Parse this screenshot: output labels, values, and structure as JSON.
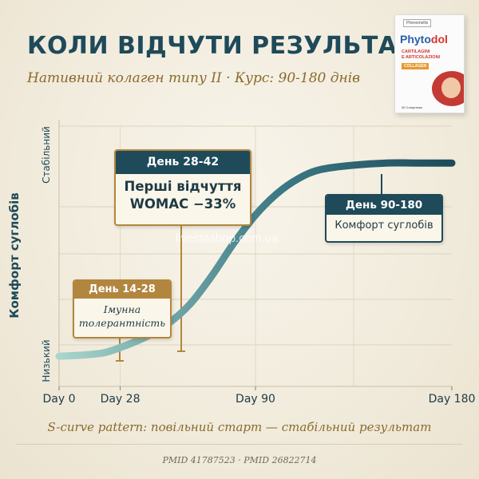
{
  "header": {
    "title": "КОЛИ ВІДЧУТИ РЕЗУЛЬТАТ?",
    "subtitle": "Нативний колаген типу II · Курс: 90-180 днів"
  },
  "product": {
    "brand_prefix": "Phyto",
    "brand_suffix": "dol",
    "maker": "Phenomellis",
    "line1": "CARTILAGINI",
    "line2": "E ARTICOLAZIONI",
    "badge": "COLLAGEN",
    "caps": "30 Compresse"
  },
  "watermark": "livestashop.com.ua",
  "chart_data": {
    "type": "line",
    "title": "",
    "ylabel": "Комфорт суглобів",
    "xlabel": "",
    "x_ticks": [
      "Day 0",
      "Day 28",
      "Day 90",
      "Day 180"
    ],
    "x_tick_values": [
      0,
      28,
      90,
      180
    ],
    "y_ticks": [
      "Низький",
      "Стабільний"
    ],
    "xlim": [
      0,
      180
    ],
    "ylim": [
      0,
      1
    ],
    "grid": true,
    "colors": {
      "curve_start": "#a9d6cc",
      "curve_end": "#1e4a5a",
      "accent": "#b2863e"
    },
    "series": [
      {
        "x": [
          0,
          10,
          20,
          28,
          40,
          50,
          60,
          70,
          80,
          90,
          100,
          110,
          120,
          135,
          150,
          165,
          180
        ],
        "y": [
          0.08,
          0.085,
          0.095,
          0.12,
          0.17,
          0.23,
          0.32,
          0.45,
          0.6,
          0.73,
          0.83,
          0.9,
          0.94,
          0.96,
          0.97,
          0.97,
          0.97
        ]
      }
    ],
    "annotations": [
      {
        "header": "День 14-28",
        "body_lines": [
          "Імунна",
          "толерантність"
        ],
        "x": 21,
        "y": 0.08
      },
      {
        "header": "День 28-42",
        "body_lines": [
          "Перші відчуття",
          "WOMAC −33%"
        ],
        "x": 35,
        "y": 0.15
      },
      {
        "header": "День 90-180",
        "body_lines": [
          "Комфорт суглобів"
        ],
        "x": 135,
        "y": 0.96
      }
    ],
    "caption": "S-curve pattern: повільний старт — стабільний результат"
  },
  "footer": {
    "refs": "PMID 41787523 · PMID 26822714"
  }
}
